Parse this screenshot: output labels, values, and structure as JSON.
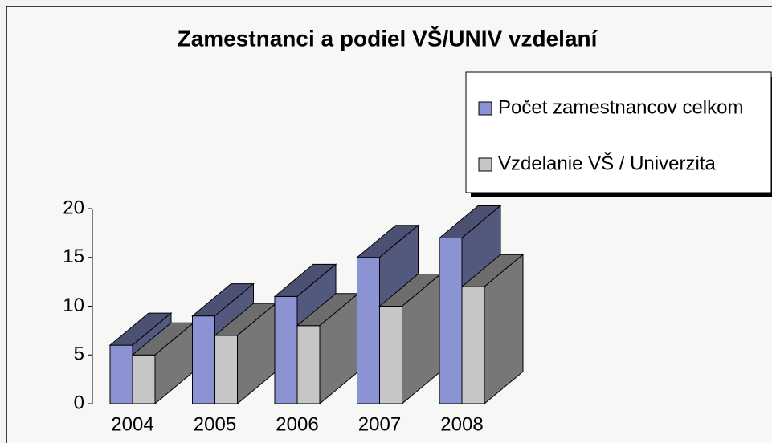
{
  "chart_data": {
    "type": "bar3d",
    "title": "Zamestnanci a podiel VŠ/UNIV vzdelaní",
    "categories": [
      "2004",
      "2005",
      "2006",
      "2007",
      "2008"
    ],
    "series": [
      {
        "name": "Počet zamestnancov celkom",
        "color": "#8b93d2",
        "values": [
          6,
          9,
          11,
          15,
          17
        ]
      },
      {
        "name": "Vzdelanie VŠ / Univerzita",
        "color": "#c6c6c6",
        "values": [
          5,
          7,
          8,
          10,
          12
        ]
      }
    ],
    "ylim": [
      0,
      20
    ],
    "yticks": [
      0,
      5,
      10,
      15,
      20
    ],
    "legend": "top-right"
  }
}
